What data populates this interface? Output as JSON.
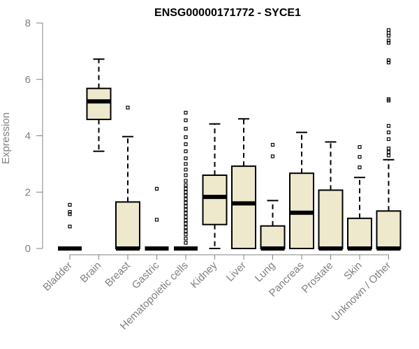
{
  "chart_data": {
    "type": "boxplot",
    "title": "ENSG00000171772 - SYCE1",
    "xlabel": "",
    "ylabel": "Expression",
    "ylim": [
      0,
      8
    ],
    "yticks": [
      0,
      2,
      4,
      6,
      8
    ],
    "grid": false,
    "colors": {
      "box_fill": "#EEE8CD",
      "stroke": "#000000",
      "axis": "#808080",
      "title": "#000000"
    },
    "categories": [
      "Bladder",
      "Brain",
      "Breast",
      "Gastric",
      "Hematopoietic cells",
      "Kidney",
      "Liver",
      "Lung",
      "Pancreas",
      "Prostate",
      "Skin",
      "Unknown / Other"
    ],
    "series": [
      {
        "name": "Bladder",
        "min": 0,
        "q1": 0,
        "median": 0,
        "q3": 0,
        "max": 0,
        "outliers": [
          0.78,
          1.22,
          1.3,
          1.55
        ]
      },
      {
        "name": "Brain",
        "min": 3.45,
        "q1": 4.58,
        "median": 5.22,
        "q3": 5.68,
        "max": 6.72,
        "outliers": []
      },
      {
        "name": "Breast",
        "min": 0,
        "q1": 0,
        "median": 0,
        "q3": 1.65,
        "max": 3.97,
        "outliers": [
          5.0
        ]
      },
      {
        "name": "Gastric",
        "min": 0,
        "q1": 0,
        "median": 0,
        "q3": 0,
        "max": 0,
        "outliers": [
          1.02,
          2.12
        ]
      },
      {
        "name": "Hematopoietic cells",
        "min": 0,
        "q1": 0,
        "median": 0,
        "q3": 0,
        "max": 0,
        "outliers": [
          0.2,
          0.35,
          0.5,
          0.62,
          0.75,
          0.88,
          1.0,
          1.12,
          1.25,
          1.38,
          1.5,
          1.62,
          1.75,
          1.88,
          2.0,
          2.12,
          2.25,
          2.4,
          2.6,
          2.8,
          3.0,
          3.2,
          3.45,
          3.7,
          3.95,
          4.25,
          4.55,
          4.82
        ]
      },
      {
        "name": "Kidney",
        "min": 0,
        "q1": 0.85,
        "median": 1.83,
        "q3": 2.6,
        "max": 4.42,
        "outliers": []
      },
      {
        "name": "Liver",
        "min": 0,
        "q1": 0,
        "median": 1.6,
        "q3": 2.92,
        "max": 4.6,
        "outliers": []
      },
      {
        "name": "Lung",
        "min": 0,
        "q1": 0,
        "median": 0,
        "q3": 0.8,
        "max": 1.7,
        "outliers": [
          3.27,
          3.68
        ]
      },
      {
        "name": "Pancreas",
        "min": 0,
        "q1": 0,
        "median": 1.27,
        "q3": 2.67,
        "max": 4.12,
        "outliers": []
      },
      {
        "name": "Prostate",
        "min": 0,
        "q1": 0,
        "median": 0,
        "q3": 2.07,
        "max": 3.78,
        "outliers": []
      },
      {
        "name": "Skin",
        "min": 0,
        "q1": 0,
        "median": 0,
        "q3": 1.07,
        "max": 2.52,
        "outliers": [
          2.88,
          3.25,
          3.6
        ]
      },
      {
        "name": "Unknown / Other",
        "min": 0,
        "q1": 0,
        "median": 0,
        "q3": 1.33,
        "max": 3.15,
        "outliers": [
          3.3,
          3.42,
          3.55,
          3.88,
          4.12,
          4.35,
          5.25,
          5.3,
          6.6,
          6.68,
          7.3,
          7.38,
          7.55,
          7.65,
          7.75
        ]
      }
    ]
  }
}
